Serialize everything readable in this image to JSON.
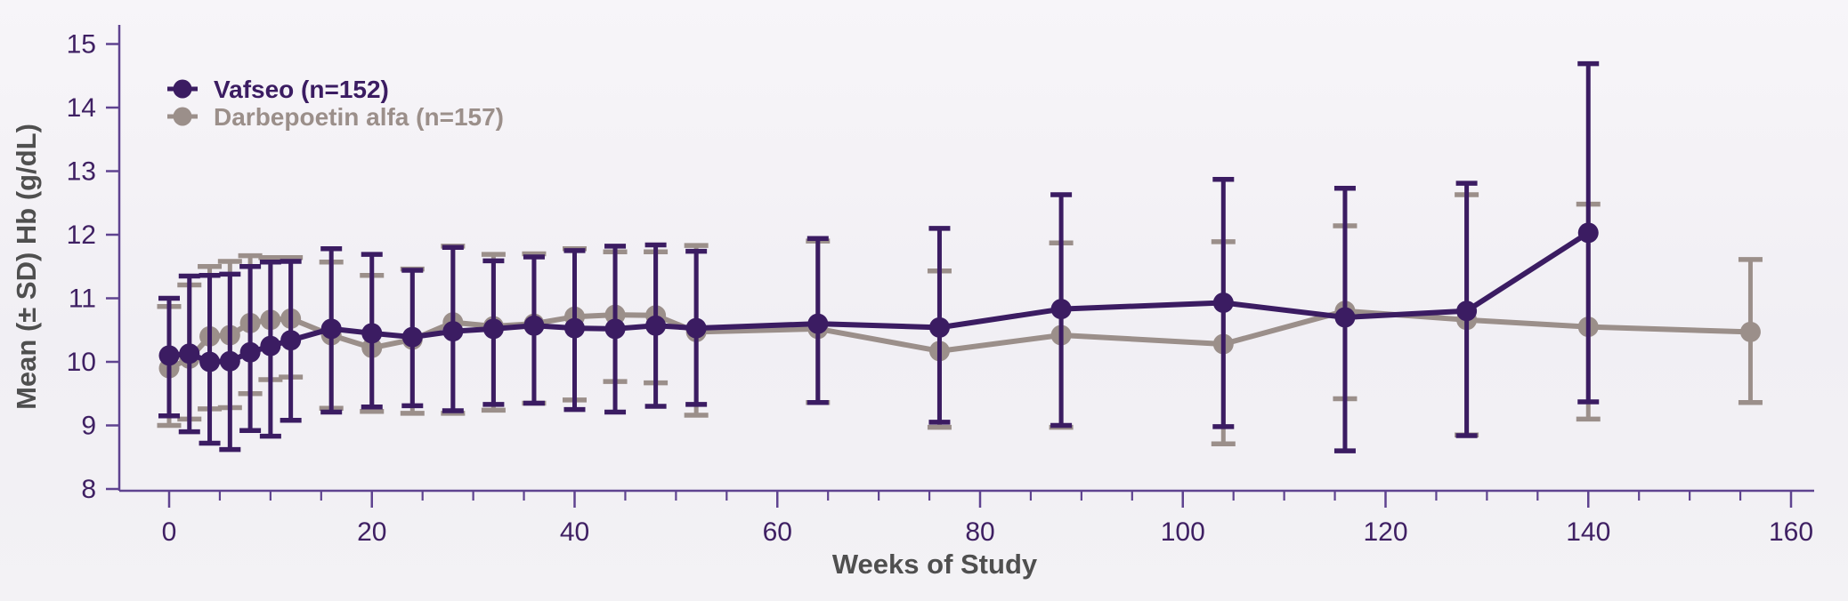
{
  "chart_data": {
    "type": "line",
    "title": "",
    "xlabel": "Weeks of Study",
    "ylabel": "Mean (± SD) Hb (g/dL)",
    "xlim": [
      0,
      160
    ],
    "ylim": [
      8,
      15
    ],
    "grid": false,
    "legend_position": "top-left",
    "x_major_ticks": [
      0,
      20,
      40,
      60,
      80,
      100,
      120,
      140,
      160
    ],
    "x_minor_tick_step": 5,
    "y_ticks": [
      8,
      9,
      10,
      11,
      12,
      13,
      14,
      15
    ],
    "x": [
      0,
      2,
      4,
      6,
      8,
      10,
      12,
      16,
      20,
      24,
      28,
      32,
      36,
      40,
      44,
      48,
      52,
      64,
      76,
      88,
      104,
      116,
      128,
      140,
      156
    ],
    "series": [
      {
        "name": "Vafseo (n=152)",
        "color": "#3b1c62",
        "marker": "circle",
        "error_bars": "±SD",
        "means": [
          10.1,
          10.13,
          10.0,
          10.01,
          10.15,
          10.25,
          10.34,
          10.52,
          10.45,
          10.39,
          10.48,
          10.52,
          10.57,
          10.53,
          10.52,
          10.57,
          10.53,
          10.6,
          10.54,
          10.83,
          10.93,
          10.7,
          10.8,
          12.03,
          null
        ],
        "lo": [
          9.15,
          8.9,
          8.72,
          8.62,
          8.92,
          8.83,
          9.08,
          9.21,
          9.29,
          9.31,
          9.23,
          9.33,
          9.35,
          9.25,
          9.21,
          9.3,
          9.33,
          9.36,
          9.05,
          9.0,
          8.98,
          8.6,
          8.84,
          9.37,
          null
        ],
        "hi": [
          11.0,
          11.35,
          11.36,
          11.38,
          11.5,
          11.57,
          11.58,
          11.78,
          11.69,
          11.44,
          11.8,
          11.59,
          11.65,
          11.75,
          11.82,
          11.84,
          11.74,
          11.94,
          12.1,
          12.63,
          12.87,
          12.73,
          12.81,
          14.69,
          null
        ]
      },
      {
        "name": "Darbepoetin alfa (n=157)",
        "color": "#9b8f8a",
        "marker": "circle",
        "error_bars": "±SD",
        "means": [
          9.9,
          10.05,
          10.4,
          10.42,
          10.61,
          10.66,
          10.68,
          10.42,
          10.22,
          10.35,
          10.62,
          10.56,
          10.6,
          10.71,
          10.74,
          10.73,
          10.47,
          10.52,
          10.17,
          10.42,
          10.28,
          10.8,
          10.66,
          10.55,
          10.47
        ],
        "lo": [
          9.0,
          9.1,
          9.26,
          9.28,
          9.5,
          9.72,
          9.76,
          9.27,
          9.22,
          9.19,
          9.19,
          9.24,
          9.35,
          9.4,
          9.69,
          9.67,
          9.16,
          9.36,
          8.97,
          8.97,
          8.71,
          9.42,
          8.85,
          9.1,
          9.36
        ],
        "hi": [
          10.87,
          11.21,
          11.5,
          11.58,
          11.67,
          11.64,
          11.64,
          11.57,
          11.36,
          11.46,
          11.82,
          11.69,
          11.7,
          11.78,
          11.73,
          11.73,
          11.83,
          11.9,
          11.43,
          11.87,
          11.89,
          12.14,
          12.63,
          12.48,
          11.61
        ]
      }
    ]
  },
  "colors": {
    "background": "#f3f1f5",
    "axis_line": "#5f4390",
    "tick_label": "#3f2063",
    "axis_title": "#4f4f4f",
    "vafseo": "#3b1c62",
    "darbepoetin": "#9b8f8a"
  }
}
